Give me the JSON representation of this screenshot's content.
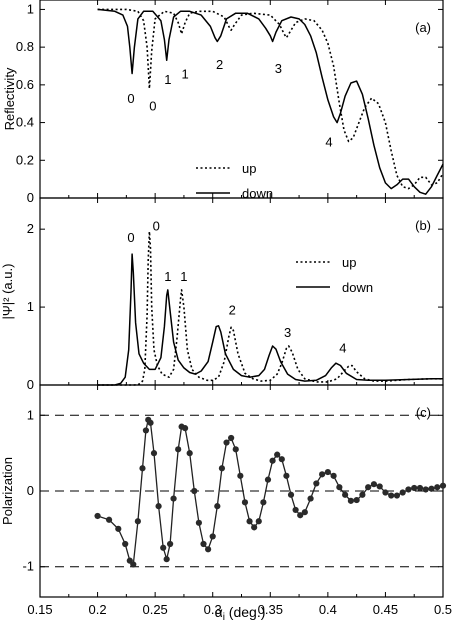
{
  "chart_data": [
    {
      "panel_label": "(a)",
      "type": "line",
      "ylabel": "Reflectivity",
      "xlim": [
        0.15,
        0.5
      ],
      "ylim": [
        0,
        1.05
      ],
      "yticks": [
        0,
        0.2,
        0.4,
        0.6,
        0.8,
        1
      ],
      "ytick_labels": [
        "0",
        "0.2",
        "0.4",
        "0.6",
        "0.8",
        "1"
      ],
      "legend": {
        "placement": "bottom-center",
        "entries": [
          "up",
          "down"
        ]
      },
      "series": [
        {
          "name": "down",
          "style": "solid",
          "x": [
            0.2,
            0.215,
            0.222,
            0.226,
            0.228,
            0.23,
            0.232,
            0.235,
            0.24,
            0.248,
            0.255,
            0.258,
            0.26,
            0.262,
            0.266,
            0.272,
            0.28,
            0.29,
            0.298,
            0.302,
            0.304,
            0.307,
            0.312,
            0.32,
            0.33,
            0.34,
            0.346,
            0.35,
            0.352,
            0.355,
            0.36,
            0.368,
            0.375,
            0.38,
            0.385,
            0.39,
            0.395,
            0.4,
            0.405,
            0.408,
            0.411,
            0.415,
            0.42,
            0.425,
            0.43,
            0.435,
            0.44,
            0.445,
            0.45,
            0.455,
            0.46,
            0.465,
            0.47,
            0.475,
            0.48,
            0.485,
            0.49,
            0.495,
            0.5
          ],
          "y": [
            1.0,
            0.99,
            0.97,
            0.91,
            0.8,
            0.66,
            0.8,
            0.95,
            0.99,
            0.99,
            0.94,
            0.84,
            0.73,
            0.84,
            0.96,
            0.99,
            0.99,
            0.97,
            0.91,
            0.85,
            0.83,
            0.86,
            0.95,
            0.98,
            0.98,
            0.95,
            0.9,
            0.86,
            0.83,
            0.88,
            0.94,
            0.96,
            0.95,
            0.92,
            0.86,
            0.77,
            0.64,
            0.52,
            0.43,
            0.4,
            0.45,
            0.54,
            0.61,
            0.62,
            0.55,
            0.42,
            0.28,
            0.16,
            0.08,
            0.05,
            0.07,
            0.1,
            0.1,
            0.06,
            0.03,
            0.02,
            0.06,
            0.12,
            0.18
          ]
        },
        {
          "name": "up",
          "style": "dotted",
          "x": [
            0.2,
            0.225,
            0.235,
            0.24,
            0.243,
            0.245,
            0.247,
            0.25,
            0.258,
            0.266,
            0.27,
            0.273,
            0.276,
            0.28,
            0.288,
            0.3,
            0.31,
            0.314,
            0.316,
            0.319,
            0.325,
            0.335,
            0.35,
            0.358,
            0.362,
            0.364,
            0.367,
            0.372,
            0.38,
            0.388,
            0.395,
            0.4,
            0.405,
            0.41,
            0.414,
            0.418,
            0.422,
            0.427,
            0.432,
            0.438,
            0.444,
            0.45,
            0.455,
            0.46,
            0.465,
            0.47,
            0.475,
            0.48,
            0.485,
            0.49,
            0.495,
            0.5
          ],
          "y": [
            1.0,
            1.0,
            0.99,
            0.94,
            0.8,
            0.58,
            0.78,
            0.95,
            0.99,
            0.98,
            0.93,
            0.87,
            0.93,
            0.98,
            0.99,
            0.99,
            0.96,
            0.91,
            0.89,
            0.92,
            0.97,
            0.98,
            0.97,
            0.92,
            0.87,
            0.85,
            0.88,
            0.93,
            0.95,
            0.94,
            0.89,
            0.82,
            0.7,
            0.5,
            0.36,
            0.3,
            0.32,
            0.4,
            0.48,
            0.53,
            0.5,
            0.4,
            0.25,
            0.12,
            0.06,
            0.05,
            0.07,
            0.11,
            0.11,
            0.07,
            0.08,
            0.13
          ]
        }
      ],
      "annotations": [
        {
          "text": "0",
          "x": 0.229,
          "y": 0.53
        },
        {
          "text": "0",
          "x": 0.248,
          "y": 0.49
        },
        {
          "text": "1",
          "x": 0.261,
          "y": 0.63
        },
        {
          "text": "1",
          "x": 0.276,
          "y": 0.66
        },
        {
          "text": "2",
          "x": 0.306,
          "y": 0.71
        },
        {
          "text": "3",
          "x": 0.357,
          "y": 0.69
        },
        {
          "text": "4",
          "x": 0.401,
          "y": 0.3
        }
      ]
    },
    {
      "panel_label": "(b)",
      "type": "line",
      "ylabel": "|Ψ|² (a.u.)",
      "xlim": [
        0.15,
        0.5
      ],
      "ylim": [
        0,
        2.4
      ],
      "yticks": [
        0,
        1,
        2
      ],
      "ytick_labels": [
        "0",
        "1",
        "2"
      ],
      "legend": {
        "placement": "top-right",
        "entries": [
          "up",
          "down"
        ]
      },
      "series": [
        {
          "name": "down",
          "style": "solid",
          "x": [
            0.2,
            0.215,
            0.22,
            0.224,
            0.227,
            0.229,
            0.23,
            0.231,
            0.233,
            0.236,
            0.24,
            0.245,
            0.25,
            0.255,
            0.258,
            0.26,
            0.261,
            0.263,
            0.266,
            0.27,
            0.275,
            0.28,
            0.285,
            0.29,
            0.296,
            0.3,
            0.303,
            0.305,
            0.307,
            0.311,
            0.318,
            0.325,
            0.332,
            0.34,
            0.345,
            0.349,
            0.352,
            0.355,
            0.359,
            0.365,
            0.372,
            0.38,
            0.39,
            0.398,
            0.403,
            0.407,
            0.411,
            0.416,
            0.425,
            0.435,
            0.45,
            0.47,
            0.49,
            0.5
          ],
          "y": [
            0.0,
            0.0,
            0.02,
            0.1,
            0.45,
            1.2,
            1.68,
            1.45,
            0.8,
            0.4,
            0.28,
            0.2,
            0.2,
            0.35,
            0.75,
            1.15,
            1.22,
            0.95,
            0.55,
            0.32,
            0.22,
            0.16,
            0.14,
            0.18,
            0.3,
            0.55,
            0.75,
            0.76,
            0.68,
            0.4,
            0.2,
            0.12,
            0.1,
            0.12,
            0.2,
            0.38,
            0.5,
            0.46,
            0.3,
            0.14,
            0.07,
            0.05,
            0.06,
            0.12,
            0.22,
            0.28,
            0.25,
            0.15,
            0.07,
            0.06,
            0.06,
            0.07,
            0.08,
            0.08
          ]
        },
        {
          "name": "up",
          "style": "dotted",
          "x": [
            0.2,
            0.225,
            0.232,
            0.236,
            0.239,
            0.241,
            0.243,
            0.244,
            0.245,
            0.246,
            0.247,
            0.249,
            0.252,
            0.256,
            0.262,
            0.266,
            0.269,
            0.272,
            0.273,
            0.275,
            0.278,
            0.282,
            0.288,
            0.295,
            0.3,
            0.305,
            0.31,
            0.314,
            0.316,
            0.318,
            0.322,
            0.328,
            0.335,
            0.342,
            0.35,
            0.356,
            0.36,
            0.364,
            0.366,
            0.369,
            0.374,
            0.38,
            0.39,
            0.4,
            0.408,
            0.414,
            0.418,
            0.421,
            0.425,
            0.432,
            0.44,
            0.45,
            0.47,
            0.49,
            0.5
          ],
          "y": [
            0.0,
            0.0,
            0.0,
            0.01,
            0.05,
            0.2,
            0.9,
            1.6,
            1.97,
            1.75,
            1.0,
            0.45,
            0.25,
            0.14,
            0.1,
            0.2,
            0.6,
            1.1,
            1.22,
            1.0,
            0.45,
            0.2,
            0.1,
            0.06,
            0.06,
            0.1,
            0.3,
            0.62,
            0.74,
            0.7,
            0.4,
            0.15,
            0.08,
            0.05,
            0.06,
            0.14,
            0.28,
            0.47,
            0.5,
            0.42,
            0.2,
            0.08,
            0.04,
            0.04,
            0.08,
            0.18,
            0.24,
            0.25,
            0.17,
            0.08,
            0.05,
            0.05,
            0.07,
            0.08,
            0.08
          ]
        }
      ],
      "annotations": [
        {
          "text": "0",
          "x": 0.229,
          "y": 1.9
        },
        {
          "text": "0",
          "x": 0.251,
          "y": 2.05
        },
        {
          "text": "1",
          "x": 0.261,
          "y": 1.4
        },
        {
          "text": "1",
          "x": 0.275,
          "y": 1.4
        },
        {
          "text": "2",
          "x": 0.317,
          "y": 0.97
        },
        {
          "text": "3",
          "x": 0.365,
          "y": 0.68
        },
        {
          "text": "4",
          "x": 0.413,
          "y": 0.48
        }
      ]
    },
    {
      "panel_label": "(c)",
      "type": "scatter",
      "ylabel": "Polarization",
      "xlabel_main": "α",
      "xlabel_sub": "i",
      "xlabel_unit": "(deg.)",
      "xlim": [
        0.15,
        0.5
      ],
      "ylim": [
        -1.4,
        1.4
      ],
      "xticks": [
        0.15,
        0.2,
        0.25,
        0.3,
        0.35,
        0.4,
        0.45,
        0.5
      ],
      "xtick_labels": [
        "0.15",
        "0.2",
        "0.25",
        "0.3",
        "0.35",
        "0.4",
        "0.45",
        "0.5"
      ],
      "yticks": [
        -1,
        0,
        1
      ],
      "ytick_labels": [
        "-1",
        "0",
        "1"
      ],
      "reference_lines": [
        1,
        0,
        -1
      ],
      "series": [
        {
          "name": "",
          "x": [
            0.2,
            0.21,
            0.218,
            0.224,
            0.228,
            0.231,
            0.235,
            0.239,
            0.242,
            0.244,
            0.246,
            0.249,
            0.253,
            0.257,
            0.26,
            0.263,
            0.266,
            0.27,
            0.273,
            0.276,
            0.28,
            0.284,
            0.288,
            0.292,
            0.296,
            0.3,
            0.304,
            0.308,
            0.312,
            0.316,
            0.32,
            0.324,
            0.328,
            0.332,
            0.336,
            0.34,
            0.344,
            0.348,
            0.352,
            0.356,
            0.36,
            0.364,
            0.368,
            0.372,
            0.376,
            0.38,
            0.385,
            0.39,
            0.395,
            0.4,
            0.405,
            0.41,
            0.415,
            0.42,
            0.425,
            0.43,
            0.435,
            0.44,
            0.445,
            0.45,
            0.455,
            0.46,
            0.465,
            0.47,
            0.475,
            0.48,
            0.485,
            0.49,
            0.495,
            0.5
          ],
          "y": [
            -0.33,
            -0.38,
            -0.5,
            -0.7,
            -0.92,
            -0.97,
            -0.4,
            0.3,
            0.8,
            0.94,
            0.9,
            0.5,
            -0.2,
            -0.75,
            -0.9,
            -0.7,
            -0.1,
            0.55,
            0.85,
            0.83,
            0.5,
            0.0,
            -0.42,
            -0.7,
            -0.77,
            -0.6,
            -0.2,
            0.3,
            0.64,
            0.7,
            0.55,
            0.2,
            -0.15,
            -0.4,
            -0.48,
            -0.4,
            -0.15,
            0.15,
            0.4,
            0.48,
            0.42,
            0.2,
            -0.05,
            -0.25,
            -0.32,
            -0.28,
            -0.1,
            0.1,
            0.22,
            0.25,
            0.2,
            0.05,
            -0.05,
            -0.13,
            -0.12,
            -0.05,
            0.05,
            0.09,
            0.06,
            -0.02,
            -0.06,
            -0.06,
            -0.02,
            0.02,
            0.04,
            0.04,
            0.02,
            0.03,
            0.05,
            0.07
          ]
        }
      ]
    }
  ]
}
